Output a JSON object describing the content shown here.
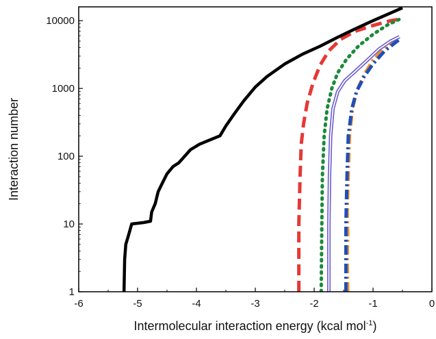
{
  "chart_data": {
    "type": "line",
    "xlabel": "Intermolecular interaction energy (kcal mol",
    "xlabel_sup": "-1",
    "xlabel_end": ")",
    "ylabel": "Interaction number",
    "xlim": [
      -6,
      0
    ],
    "ylim": [
      1,
      16000
    ],
    "yscale": "log",
    "grid": false,
    "legend": "none",
    "x_ticks": [
      -6,
      -5,
      -4,
      -3,
      -2,
      -1,
      0
    ],
    "x_tick_labels": [
      "-6",
      "-5",
      "-4",
      "-3",
      "-2",
      "-1",
      "0"
    ],
    "y_ticks": [
      1,
      10,
      100,
      1000,
      10000
    ],
    "y_tick_labels": [
      "1",
      "10",
      "100",
      "1000",
      "10000"
    ],
    "series": [
      {
        "color": "#000000",
        "style": "solid",
        "points": [
          [
            -5.23,
            1
          ],
          [
            -5.22,
            3
          ],
          [
            -5.2,
            5
          ],
          [
            -5.15,
            7
          ],
          [
            -5.1,
            10
          ],
          [
            -4.9,
            10.5
          ],
          [
            -4.78,
            11
          ],
          [
            -4.76,
            15
          ],
          [
            -4.7,
            20
          ],
          [
            -4.65,
            30
          ],
          [
            -4.58,
            40
          ],
          [
            -4.5,
            55
          ],
          [
            -4.4,
            70
          ],
          [
            -4.3,
            80
          ],
          [
            -4.2,
            100
          ],
          [
            -4.1,
            125
          ],
          [
            -3.95,
            150
          ],
          [
            -3.8,
            170
          ],
          [
            -3.6,
            200
          ],
          [
            -3.5,
            280
          ],
          [
            -3.35,
            430
          ],
          [
            -3.2,
            650
          ],
          [
            -3.0,
            1050
          ],
          [
            -2.8,
            1500
          ],
          [
            -2.5,
            2300
          ],
          [
            -2.2,
            3200
          ],
          [
            -1.9,
            4200
          ],
          [
            -1.6,
            5700
          ],
          [
            -1.3,
            7600
          ],
          [
            -1.0,
            10000
          ],
          [
            -0.7,
            13000
          ],
          [
            -0.5,
            15500
          ]
        ]
      },
      {
        "color": "#e53935",
        "style": "dash",
        "points": [
          [
            -2.26,
            1
          ],
          [
            -2.26,
            10
          ],
          [
            -2.24,
            50
          ],
          [
            -2.22,
            150
          ],
          [
            -2.18,
            300
          ],
          [
            -2.12,
            600
          ],
          [
            -2.02,
            1200
          ],
          [
            -1.9,
            2200
          ],
          [
            -1.75,
            3600
          ],
          [
            -1.55,
            5300
          ],
          [
            -1.3,
            7000
          ],
          [
            -1.0,
            8500
          ],
          [
            -0.7,
            10000
          ],
          [
            -0.55,
            10500
          ]
        ]
      },
      {
        "color": "#1b8a3a",
        "style": "dot",
        "points": [
          [
            -1.88,
            1
          ],
          [
            -1.87,
            10
          ],
          [
            -1.86,
            50
          ],
          [
            -1.83,
            200
          ],
          [
            -1.78,
            500
          ],
          [
            -1.7,
            1000
          ],
          [
            -1.6,
            1700
          ],
          [
            -1.45,
            2700
          ],
          [
            -1.25,
            4200
          ],
          [
            -1.0,
            6300
          ],
          [
            -0.75,
            8700
          ],
          [
            -0.55,
            10500
          ]
        ]
      },
      {
        "color": "#6a5acd",
        "style": "double",
        "points": [
          [
            -1.75,
            1
          ],
          [
            -1.75,
            10
          ],
          [
            -1.74,
            50
          ],
          [
            -1.72,
            200
          ],
          [
            -1.68,
            500
          ],
          [
            -1.6,
            900
          ],
          [
            -1.48,
            1300
          ],
          [
            -1.3,
            1800
          ],
          [
            -1.1,
            2600
          ],
          [
            -0.9,
            3800
          ],
          [
            -0.7,
            5000
          ],
          [
            -0.55,
            5800
          ]
        ]
      },
      {
        "color": "#f28c28",
        "style": "dashdot",
        "points": [
          [
            -1.43,
            1
          ],
          [
            -1.44,
            3
          ],
          [
            -1.43,
            7
          ],
          [
            -1.44,
            15
          ],
          [
            -1.42,
            60
          ],
          [
            -1.4,
            200
          ],
          [
            -1.35,
            500
          ],
          [
            -1.28,
            900
          ],
          [
            -1.15,
            1600
          ],
          [
            -1.0,
            2600
          ],
          [
            -0.8,
            4000
          ],
          [
            -0.55,
            5800
          ]
        ]
      },
      {
        "color": "#1f4fb5",
        "style": "dashdot",
        "points": [
          [
            -1.46,
            1
          ],
          [
            -1.46,
            10
          ],
          [
            -1.44,
            60
          ],
          [
            -1.42,
            200
          ],
          [
            -1.36,
            500
          ],
          [
            -1.28,
            900
          ],
          [
            -1.15,
            1500
          ],
          [
            -1.0,
            2300
          ],
          [
            -0.8,
            3600
          ],
          [
            -0.55,
            5300
          ]
        ]
      }
    ]
  }
}
